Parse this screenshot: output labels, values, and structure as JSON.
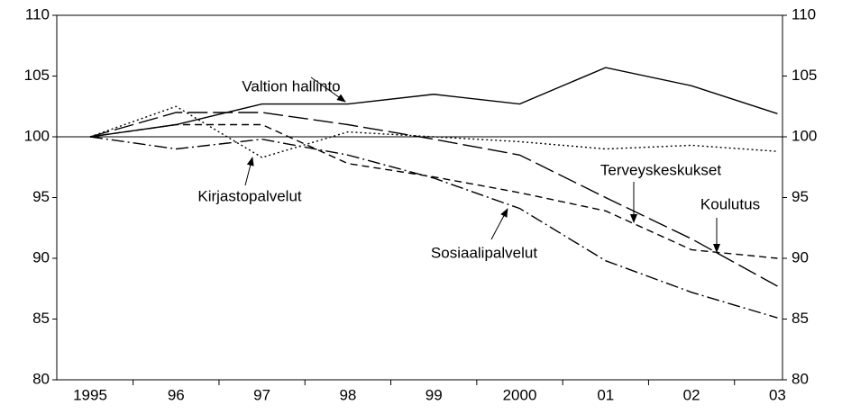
{
  "chart_data": {
    "type": "line",
    "categories": [
      "1995",
      "96",
      "97",
      "98",
      "99",
      "2000",
      "01",
      "02",
      "03"
    ],
    "series": [
      {
        "name": "Valtion hallinto",
        "color": "#000000",
        "dash": "",
        "values": [
          100,
          101,
          102.7,
          102.7,
          103.5,
          102.7,
          105.7,
          104.2,
          101.9
        ]
      },
      {
        "name": "Kirjastopalvelut",
        "color": "#000000",
        "dash": "2,3",
        "values": [
          100,
          102.5,
          98.3,
          100.4,
          100,
          99.6,
          99,
          99.3,
          98.8
        ]
      },
      {
        "name": "Sosiaalipalvelut",
        "color": "#000000",
        "dash": "14,4,2,4",
        "values": [
          100,
          99,
          99.8,
          98.5,
          96.6,
          94.1,
          89.8,
          87.2,
          85.1
        ]
      },
      {
        "name": "Terveyskeskukset",
        "color": "#000000",
        "dash": "22,6",
        "values": [
          100,
          102,
          102,
          101,
          99.8,
          98.5,
          95,
          91.6,
          87.7
        ]
      },
      {
        "name": "Koulutus",
        "color": "#000000",
        "dash": "8,5",
        "values": [
          100,
          101,
          101,
          97.8,
          96.7,
          95.4,
          93.9,
          90.7,
          90
        ]
      }
    ],
    "ylim": [
      80,
      110
    ],
    "yticks": [
      80,
      85,
      90,
      95,
      100,
      105,
      110
    ],
    "y2lim": [
      80,
      110
    ],
    "y2ticks": [
      80,
      85,
      90,
      95,
      100,
      105,
      110
    ],
    "reference_line": 100,
    "grid": false
  }
}
